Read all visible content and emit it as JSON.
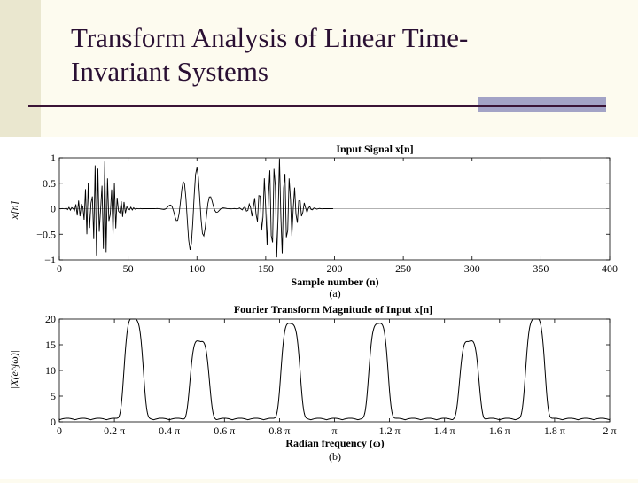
{
  "slide": {
    "title_line1": "Transform Analysis of Linear Time-",
    "title_line2": "Invariant Systems"
  },
  "chart_data": [
    {
      "type": "line",
      "title": "Input Signal x[n]",
      "xlabel": "Sample number (n)",
      "ylabel": "x[n]",
      "caption": "(a)",
      "xlim": [
        0,
        400
      ],
      "ylim": [
        -1,
        1
      ],
      "xticks": [
        "0",
        "50",
        "100",
        "150",
        "200",
        "250",
        "300",
        "350",
        "400"
      ],
      "yticks": [
        "1",
        "0.5",
        "0",
        "−0.5",
        "−1"
      ],
      "xtick_values": [
        0,
        50,
        100,
        150,
        200,
        250,
        300,
        350,
        400
      ],
      "ytick_values": [
        1,
        0.5,
        0,
        -0.5,
        -1
      ],
      "signal_length": 200,
      "components": [
        {
          "start": 0,
          "end": 60,
          "peak_amplitude": 1.0,
          "normalized_frequency": 0.85
        },
        {
          "start": 70,
          "end": 125,
          "peak_amplitude": 0.85,
          "normalized_frequency": 0.2
        },
        {
          "start": 125,
          "end": 192,
          "peak_amplitude": 1.0,
          "normalized_frequency": 0.55
        }
      ]
    },
    {
      "type": "line",
      "title": "Fourier Transform Magnitude of Input x[n]",
      "xlabel": "Radian frequency (ω)",
      "ylabel": "|X(e^jω)|",
      "caption": "(b)",
      "xlim": [
        0,
        2
      ],
      "x_unit": "π",
      "ylim": [
        0,
        20
      ],
      "xticks": [
        "0",
        "0.2 π",
        "0.4 π",
        "0.6 π",
        "0.8 π",
        "π",
        "1.2 π",
        "1.4 π",
        "1.6 π",
        "1.8 π",
        "2 π"
      ],
      "xtick_values": [
        0,
        0.2,
        0.4,
        0.6,
        0.8,
        1.0,
        1.2,
        1.4,
        1.6,
        1.8,
        2.0
      ],
      "yticks": [
        "20",
        "15",
        "10",
        "5",
        "0"
      ],
      "ytick_values": [
        20,
        15,
        10,
        5,
        0
      ],
      "peaks": [
        {
          "omega": 0.27,
          "magnitude": 19.5
        },
        {
          "omega": 0.51,
          "magnitude": 15.2
        },
        {
          "omega": 0.84,
          "magnitude": 18.5
        },
        {
          "omega": 1.16,
          "magnitude": 18.5
        },
        {
          "omega": 1.49,
          "magnitude": 15.2
        },
        {
          "omega": 1.73,
          "magnitude": 19.5
        }
      ]
    }
  ]
}
